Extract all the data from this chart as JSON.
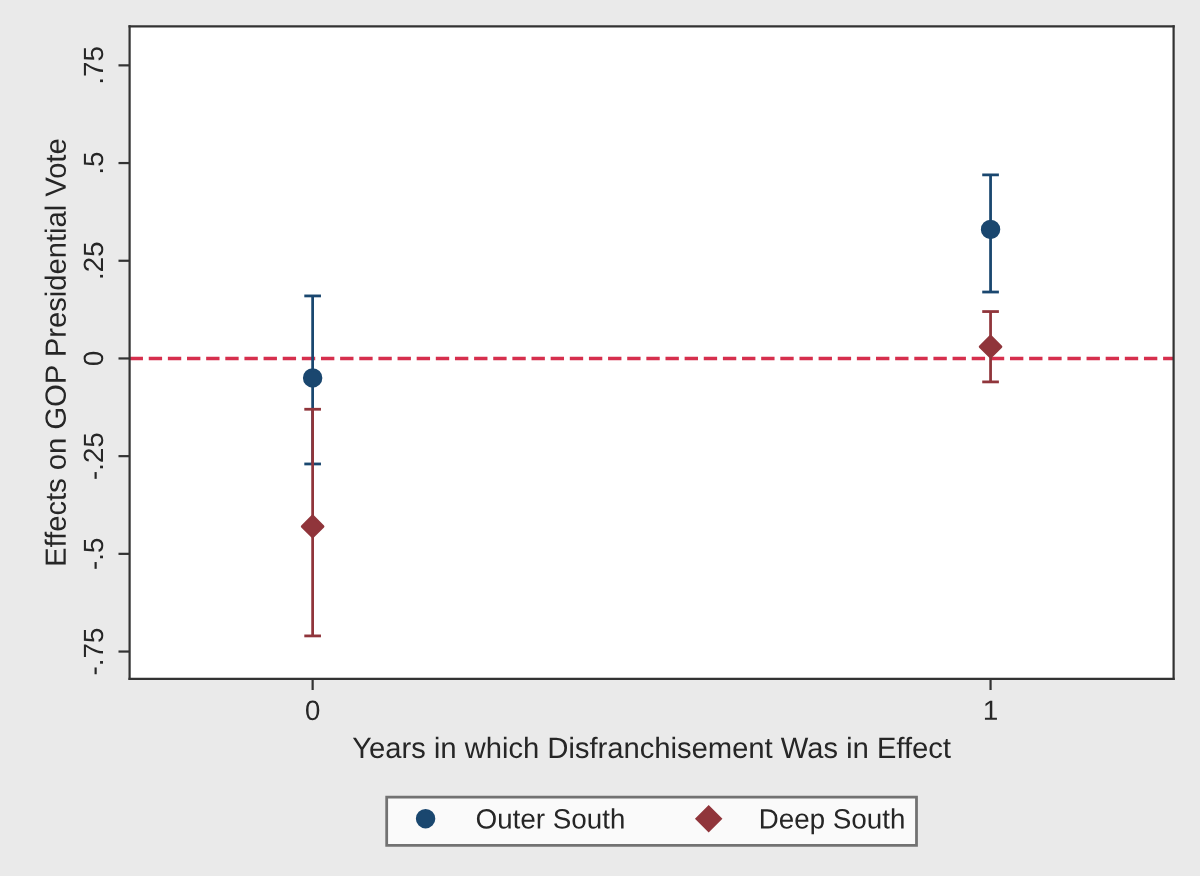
{
  "chart_data": {
    "type": "scatter",
    "xlabel": "Years in which Disfranchisement Was in Effect",
    "ylabel": "Effects on GOP Presidential Vote",
    "categories": [
      "0",
      "1"
    ],
    "series": [
      {
        "name": "Outer South",
        "color": "#1a476f",
        "marker": "circle",
        "values": [
          -0.05,
          0.33
        ],
        "errors": [
          [
            -0.27,
            0.16
          ],
          [
            0.17,
            0.47
          ]
        ]
      },
      {
        "name": "Deep South",
        "color": "#90353b",
        "marker": "diamond",
        "values": [
          -0.43,
          0.03
        ],
        "errors": [
          [
            -0.71,
            -0.13
          ],
          [
            -0.06,
            0.12
          ]
        ]
      }
    ],
    "ylim": [
      -0.82,
      0.85
    ],
    "yticks": [
      {
        "value": -0.75,
        "label": "-.75"
      },
      {
        "value": -0.5,
        "label": "-.5"
      },
      {
        "value": -0.25,
        "label": "-.25"
      },
      {
        "value": 0,
        "label": "0"
      },
      {
        "value": 0.25,
        "label": ".25"
      },
      {
        "value": 0.5,
        "label": ".5"
      },
      {
        "value": 0.75,
        "label": ".75"
      }
    ],
    "ref_lines": [
      {
        "axis": "y",
        "value": 0,
        "color": "#d62f4d",
        "line_style": "dashed"
      }
    ],
    "grid": false,
    "legend": "bottom"
  }
}
